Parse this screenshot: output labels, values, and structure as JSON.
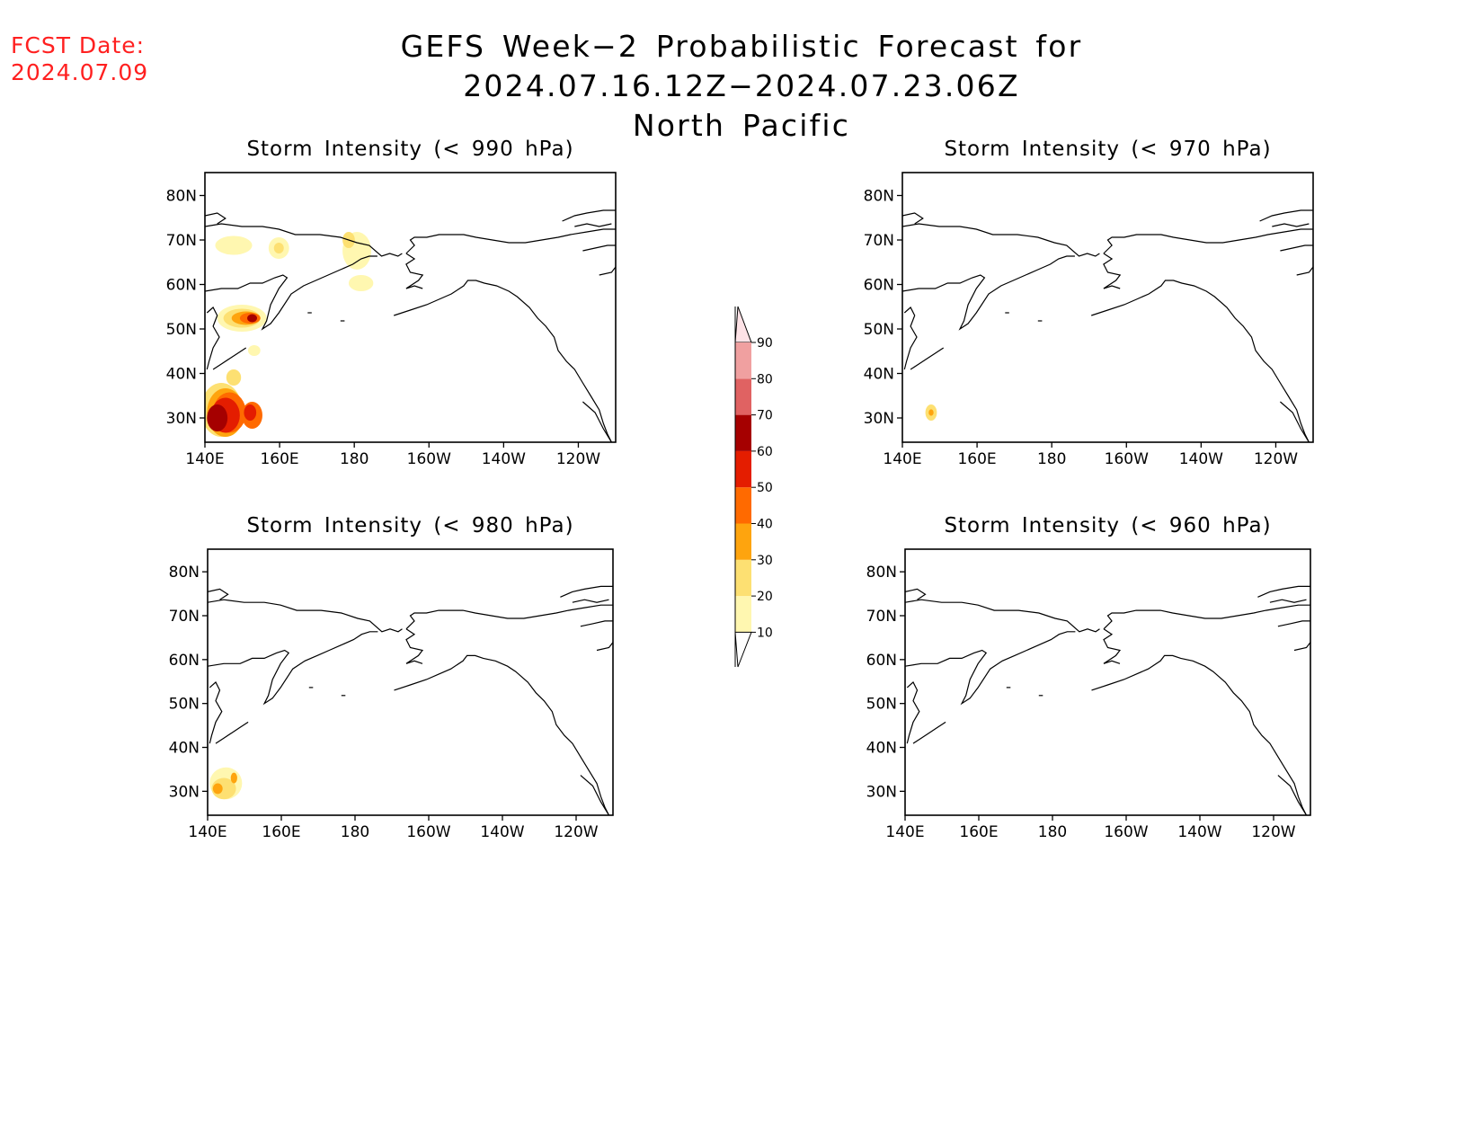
{
  "header": {
    "fcst_date_label": "FCST Date:",
    "fcst_date_value": "2024.07.09",
    "title_line1": "GEFS Week−2 Probabilistic Forecast for 2024.07.16.12Z−2024.07.23.06Z",
    "title_line2": "North Pacific",
    "fcst_color": "#ff2020"
  },
  "panels": [
    {
      "title": "Storm Intensity (< 990 hPa)"
    },
    {
      "title": "Storm Intensity (< 970 hPa)"
    },
    {
      "title": "Storm Intensity (< 980 hPa)"
    },
    {
      "title": "Storm Intensity (< 960 hPa)"
    }
  ],
  "axes": {
    "x_ticks": [
      "140E",
      "160E",
      "180",
      "160W",
      "140W",
      "120W"
    ],
    "y_ticks": [
      "80N",
      "70N",
      "60N",
      "50N",
      "40N",
      "30N"
    ]
  },
  "colorbar": {
    "levels": [
      "10",
      "20",
      "30",
      "40",
      "50",
      "60",
      "70",
      "80",
      "90"
    ],
    "colors": [
      "#fff7b0",
      "#fde072",
      "#fea40e",
      "#ff6a00",
      "#e41d00",
      "#a50000",
      "#e06262",
      "#f0a0a0",
      "#fde2e6"
    ]
  }
}
